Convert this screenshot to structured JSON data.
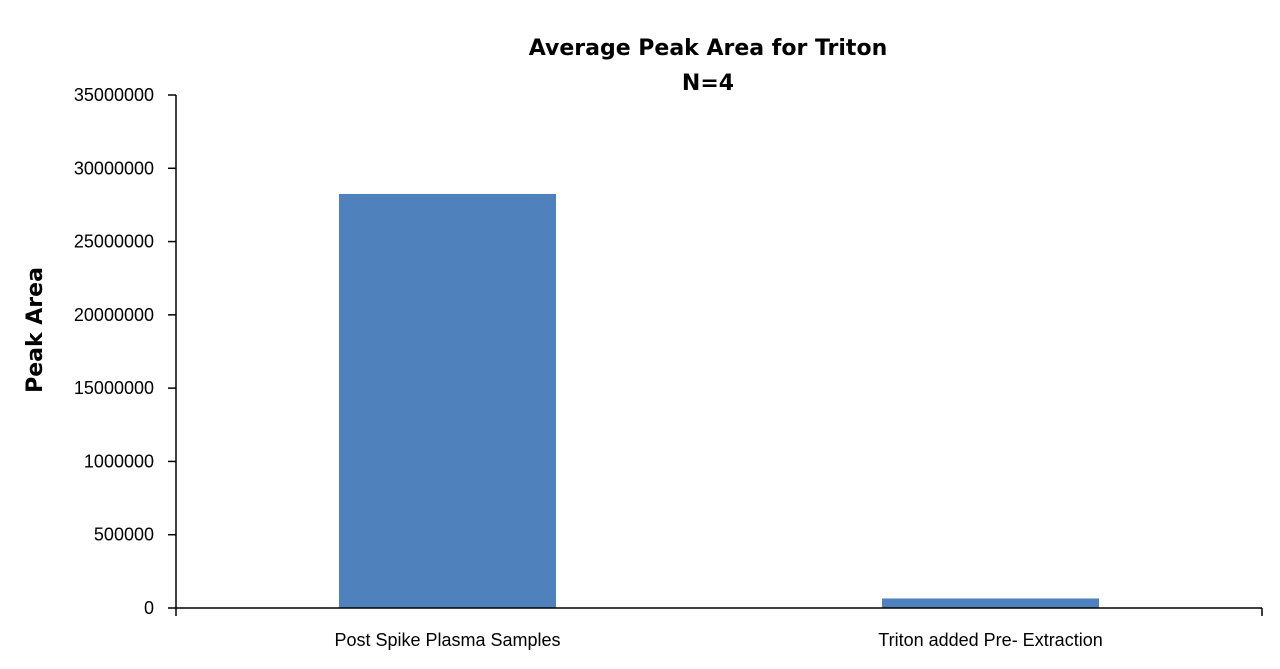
{
  "chart_data": {
    "type": "bar",
    "title": "Average Peak Area for Triton",
    "subtitle": "N=4",
    "xlabel": "",
    "ylabel": "Peak Area",
    "categories": [
      "Post Spike Plasma Samples",
      "Triton added Pre- Extraction"
    ],
    "values": [
      28250000,
      650000
    ],
    "yticks": [
      "35000000",
      "30000000",
      "25000000",
      "20000000",
      "15000000",
      "1000000",
      "500000",
      "0"
    ],
    "ylim": [
      0,
      35000000
    ],
    "grid": false,
    "legend": "none",
    "bar_color": "#4f81bd"
  }
}
